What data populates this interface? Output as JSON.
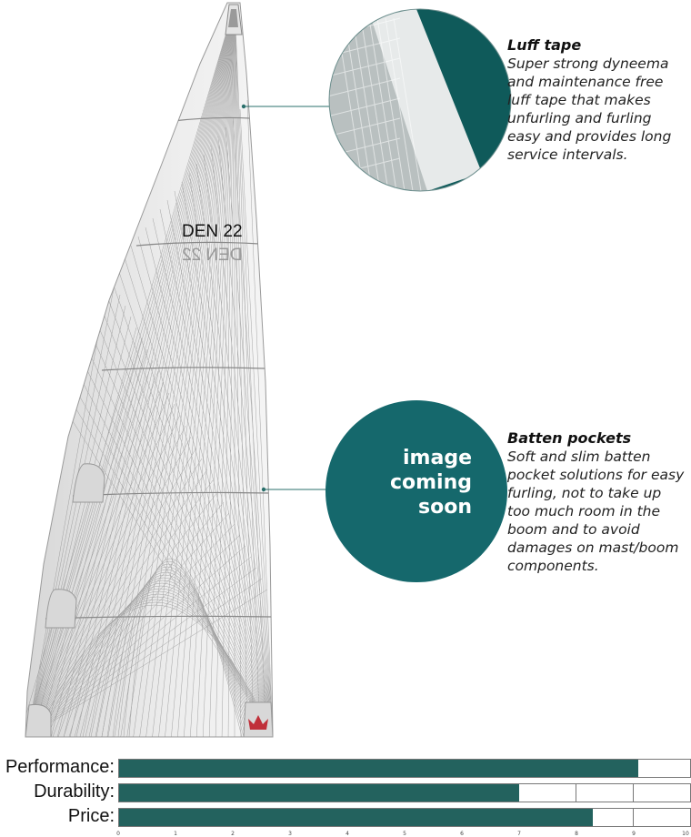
{
  "sail": {
    "sail_number": "DEN 22",
    "sail_number_mirrored": "DEN 22"
  },
  "callouts": [
    {
      "title": "Luff tape",
      "body": "Super strong dyneema and maintenance free luff tape that makes unfurling and furling easy and provides long service intervals."
    },
    {
      "title": "Batten pockets",
      "body": "Soft and slim batten pocket solutions for easy furling, not to take up too much room in the boom and to avoid damages on mast/boom components."
    }
  ],
  "placeholder_image": {
    "line1": "image",
    "line2": "coming",
    "line3": "soon"
  },
  "colors": {
    "accent": "#23625e",
    "teal_circle": "#1b6a6e",
    "crown": "#c0303a"
  },
  "ratings": {
    "scale_max": 10,
    "axis_ticks": [
      "0",
      "1",
      "2",
      "3",
      "4",
      "5",
      "6",
      "7",
      "8",
      "9",
      "10"
    ],
    "items": [
      {
        "label": "Performance:",
        "value": 9.1,
        "dividers": []
      },
      {
        "label": "Durability:",
        "value": 7.0,
        "dividers": [
          8,
          9
        ]
      },
      {
        "label": "Price:",
        "value": 8.3,
        "dividers": [
          9
        ]
      }
    ]
  }
}
